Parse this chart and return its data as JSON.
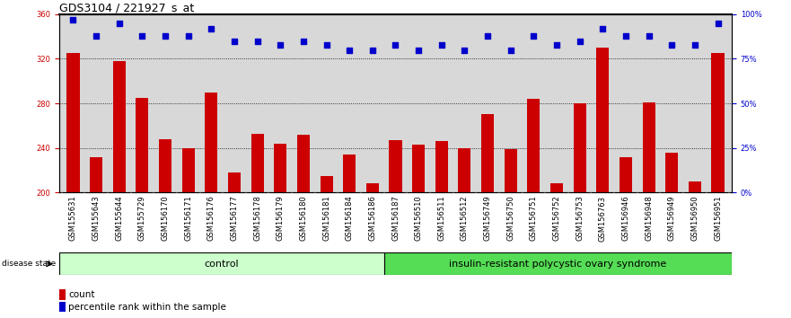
{
  "title": "GDS3104 / 221927_s_at",
  "samples": [
    "GSM155631",
    "GSM155643",
    "GSM155644",
    "GSM155729",
    "GSM156170",
    "GSM156171",
    "GSM156176",
    "GSM156177",
    "GSM156178",
    "GSM156179",
    "GSM156180",
    "GSM156181",
    "GSM156184",
    "GSM156186",
    "GSM156187",
    "GSM156510",
    "GSM156511",
    "GSM156512",
    "GSM156749",
    "GSM156750",
    "GSM156751",
    "GSM156752",
    "GSM156753",
    "GSM156763",
    "GSM156946",
    "GSM156948",
    "GSM156949",
    "GSM156950",
    "GSM156951"
  ],
  "counts": [
    325,
    232,
    318,
    285,
    248,
    240,
    290,
    218,
    253,
    244,
    252,
    215,
    234,
    208,
    247,
    243,
    246,
    240,
    270,
    239,
    284,
    208,
    280,
    330,
    232,
    281,
    236,
    210,
    325
  ],
  "percentile_ranks": [
    97,
    88,
    95,
    88,
    88,
    88,
    92,
    85,
    85,
    83,
    85,
    83,
    80,
    80,
    83,
    80,
    83,
    80,
    88,
    80,
    88,
    83,
    85,
    92,
    88,
    88,
    83,
    83,
    95
  ],
  "n_control": 14,
  "control_label": "control",
  "disease_label": "insulin-resistant polycystic ovary syndrome",
  "bar_color": "#cc0000",
  "dot_color": "#0000cc",
  "ylim_left": [
    200,
    360
  ],
  "ylim_right": [
    0,
    100
  ],
  "yticks_left": [
    200,
    240,
    280,
    320,
    360
  ],
  "yticks_right": [
    0,
    25,
    50,
    75,
    100
  ],
  "ytick_right_labels": [
    "0%",
    "25%",
    "50%",
    "75%",
    "100%"
  ],
  "grid_values": [
    240,
    280,
    320
  ],
  "bg_color": "#d8d8d8",
  "xtick_bg": "#d8d8d8",
  "control_bg": "#ccffcc",
  "disease_bg": "#55dd55",
  "title_fontsize": 9,
  "tick_fontsize": 6,
  "label_fontsize": 8,
  "legend_fontsize": 7.5
}
